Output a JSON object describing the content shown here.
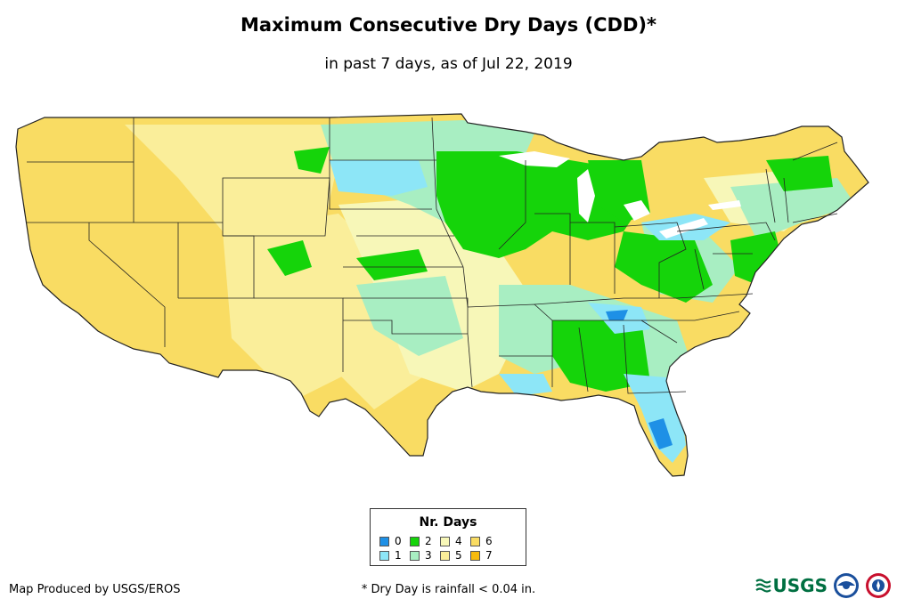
{
  "title": "Maximum Consecutive Dry Days (CDD)*",
  "subtitle": "in past 7 days, as of Jul 22, 2019",
  "legend": {
    "title": "Nr. Days",
    "items": [
      {
        "label": "0",
        "color": "#1e90e6"
      },
      {
        "label": "1",
        "color": "#8de6f7"
      },
      {
        "label": "2",
        "color": "#15d40a"
      },
      {
        "label": "3",
        "color": "#a8eec2"
      },
      {
        "label": "4",
        "color": "#f7f7b8"
      },
      {
        "label": "5",
        "color": "#faee9a"
      },
      {
        "label": "6",
        "color": "#f9dc63"
      },
      {
        "label": "7",
        "color": "#f7bb0e"
      }
    ]
  },
  "credit": "Map Produced by USGS/EROS",
  "footnote": "* Dry Day is rainfall < 0.04 in.",
  "logos": {
    "usgs": "USGS",
    "usgs_icon": "usgs-wave-icon",
    "noaa_icon": "noaa-seal-icon",
    "nws_icon": "nws-seal-icon"
  }
}
